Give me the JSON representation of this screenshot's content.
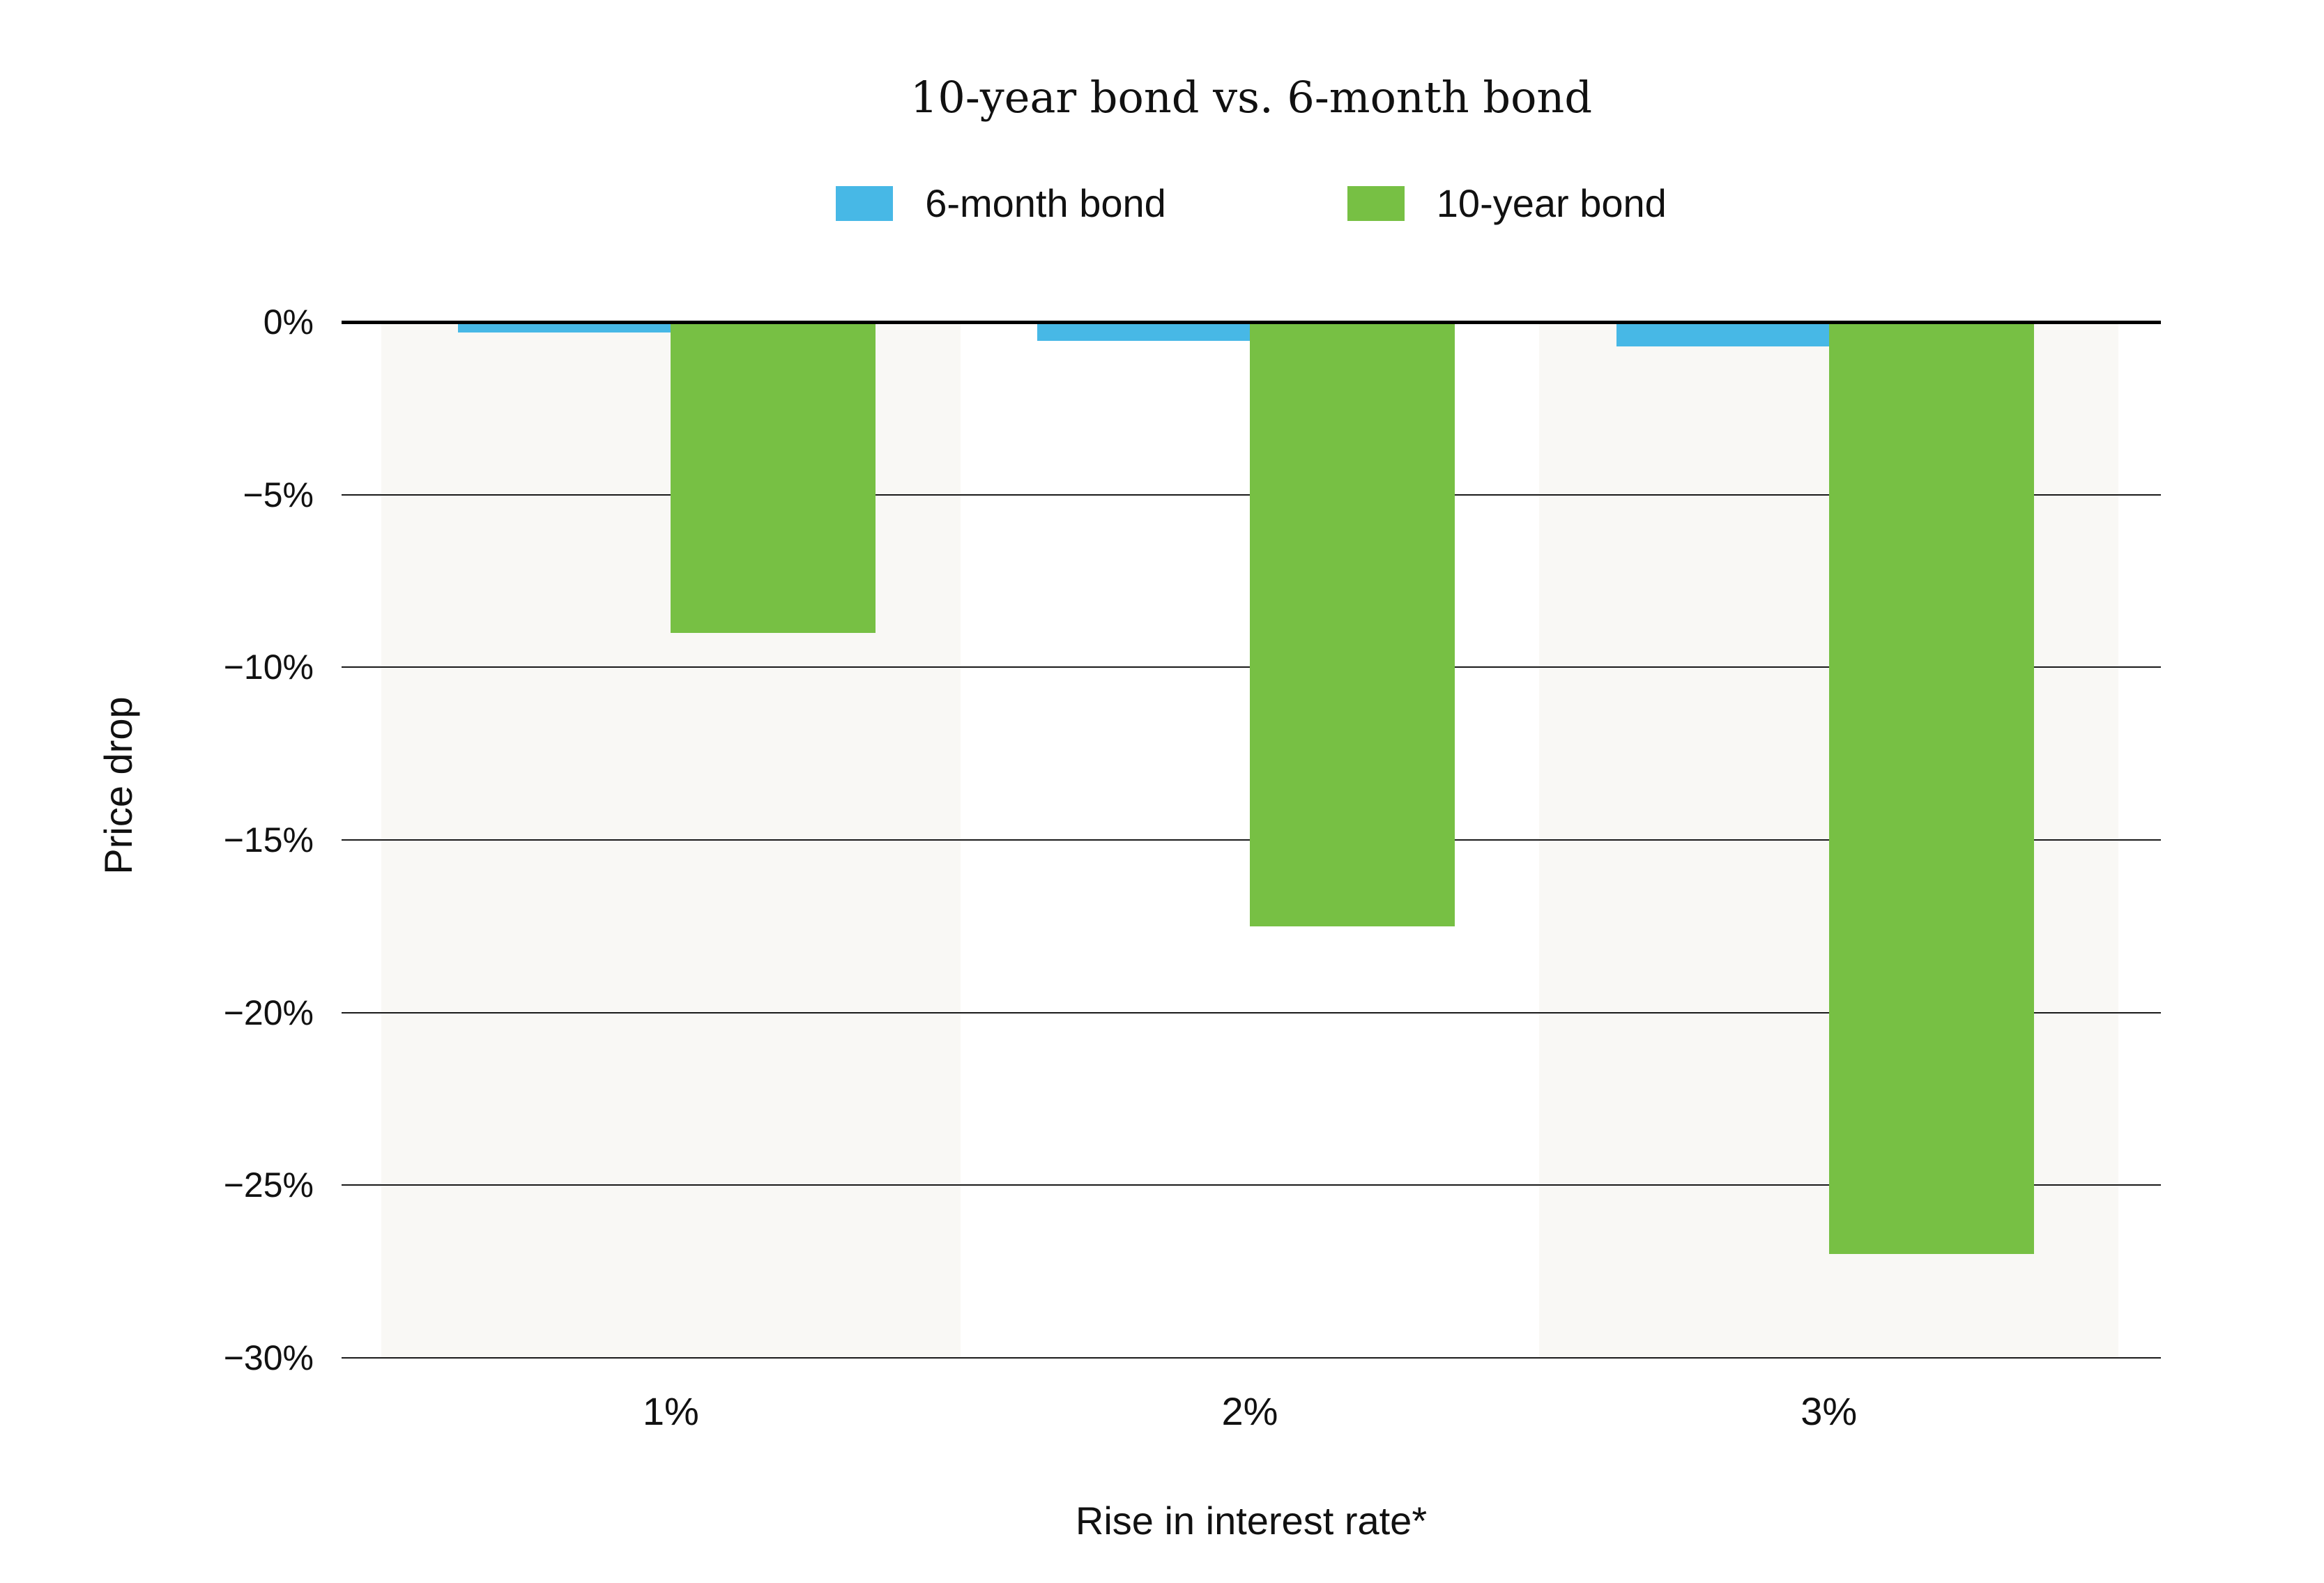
{
  "title": "10-year bond vs. 6-month bond",
  "legend": {
    "items": [
      {
        "label": "6-month bond",
        "color": "#47b8e6"
      },
      {
        "label": "10-year bond",
        "color": "#77c044"
      }
    ]
  },
  "y_axis_title": "Price drop",
  "x_axis_title": "Rise in interest rate*",
  "chart_data": {
    "type": "bar",
    "title": "10-year bond vs. 6-month bond",
    "categories": [
      "1%",
      "2%",
      "3%"
    ],
    "series": [
      {
        "name": "6-month bond",
        "color": "#47b8e6",
        "values": [
          -0.3,
          -0.55,
          -0.7
        ]
      },
      {
        "name": "10-year bond",
        "color": "#77c044",
        "values": [
          -9,
          -17.5,
          -27
        ]
      }
    ],
    "xlabel": "Rise in interest rate*",
    "ylabel": "Price drop",
    "ylim": [
      -30,
      0
    ],
    "yticks": [
      {
        "value": 0,
        "label": "0%"
      },
      {
        "value": -5,
        "label": "−5%"
      },
      {
        "value": -10,
        "label": "−10%"
      },
      {
        "value": -15,
        "label": "−15%"
      },
      {
        "value": -20,
        "label": "−20%"
      },
      {
        "value": -25,
        "label": "−25%"
      },
      {
        "value": -30,
        "label": "−30%"
      }
    ],
    "grid": true,
    "legend_position": "top",
    "band_color": "#f9f8f5",
    "band_pattern": [
      "band",
      "none",
      "band"
    ],
    "axis_color": "#000000",
    "gridline_color": "#1a1a1a",
    "text_color": "#1a1a1a"
  }
}
